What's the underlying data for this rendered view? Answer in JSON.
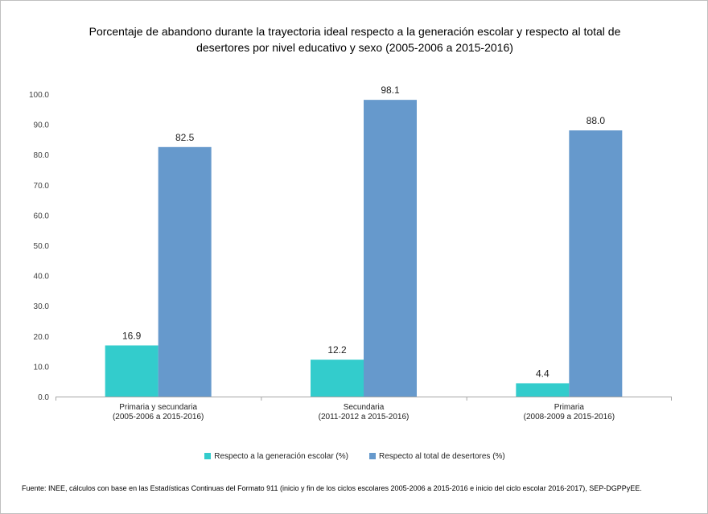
{
  "chart_data": {
    "type": "bar",
    "title": "Porcentaje de abandono durante la trayectoria ideal respecto a la generación escolar y respecto al total de desertores por nivel educativo y sexo (2005-2006 a 2015-2016)",
    "categories": [
      [
        "Primaria y secundaria",
        "(2005-2006 a 2015-2016)"
      ],
      [
        "Secundaria",
        "(2011-2012 a 2015-2016)"
      ],
      [
        "Primaria",
        "(2008-2009 a 2015-2016)"
      ]
    ],
    "series": [
      {
        "name": "Respecto a la generación escolar (%)",
        "color": "#33cccc",
        "values": [
          16.9,
          12.2,
          4.4
        ],
        "labels": [
          "16.9",
          "12.2",
          "4.4"
        ]
      },
      {
        "name": "Respecto al total de desertores (%)",
        "color": "#6699cc",
        "values": [
          82.5,
          98.1,
          88.0
        ],
        "labels": [
          "82.5",
          "98.1",
          "88.0"
        ]
      }
    ],
    "ylim": [
      0,
      100
    ],
    "yticks": [
      "0.0",
      "10.0",
      "20.0",
      "30.0",
      "40.0",
      "50.0",
      "60.0",
      "70.0",
      "80.0",
      "90.0",
      "100.0"
    ],
    "grid": false,
    "legend_position": "bottom",
    "xlabel": "",
    "ylabel": ""
  },
  "source_note": "Fuente: INEE, cálculos con base en las Estadísticas Continuas del Formato 911 (inicio y fin de los ciclos escolares 2005-2006 a 2015-2016 e inicio del ciclo escolar 2016-2017), SEP-DGPPyEE."
}
